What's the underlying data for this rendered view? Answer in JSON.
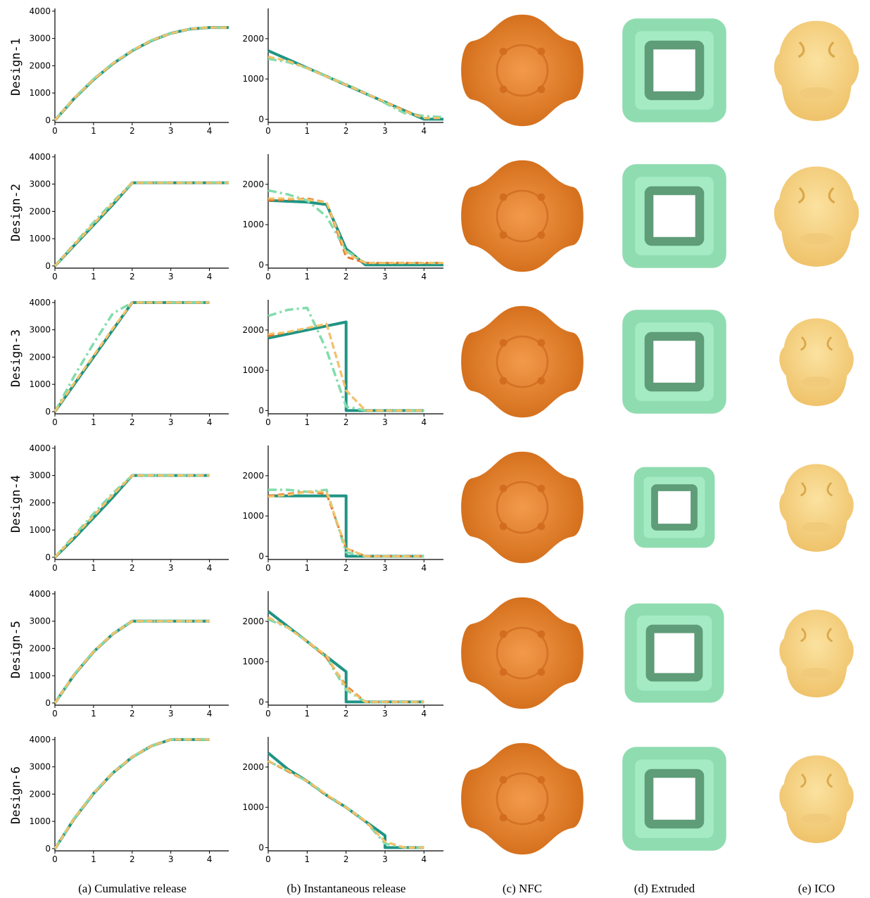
{
  "chart_data": [
    {
      "type": "line",
      "x": [
        0,
        0.5,
        1,
        1.5,
        2,
        2.5,
        3,
        3.5,
        4,
        4.5
      ],
      "xlim": [
        0,
        4.5
      ],
      "xticks": [
        0,
        1,
        2,
        3,
        4
      ],
      "ylim": [
        -80,
        4100
      ],
      "yticks": [
        0,
        1000,
        2000,
        3000,
        4000
      ],
      "series": [
        {
          "color": "#1f9484",
          "dash": "solid",
          "values": [
            0,
            797,
            1488,
            2072,
            2550,
            2922,
            3188,
            3347,
            3400,
            3400
          ]
        },
        {
          "color": "#82dcac",
          "dash": "dashdot",
          "values": [
            0,
            820,
            1510,
            2090,
            2560,
            2930,
            3190,
            3350,
            3400,
            3400
          ]
        },
        {
          "color": "#e8782a",
          "dash": "dashed",
          "values": [
            0,
            800,
            1495,
            2080,
            2555,
            2925,
            3190,
            3348,
            3400,
            3400
          ]
        },
        {
          "color": "#f2c46a",
          "dash": "dashed",
          "values": [
            0,
            805,
            1495,
            2080,
            2555,
            2925,
            3190,
            3348,
            3400,
            3400
          ]
        }
      ]
    },
    {
      "type": "line",
      "x": [
        0,
        0.5,
        1,
        1.5,
        2,
        2.5,
        3,
        3.5,
        4,
        4.5
      ],
      "xlim": [
        0,
        4.5
      ],
      "xticks": [
        0,
        1,
        2,
        3,
        4
      ],
      "ylim": [
        -80,
        2750
      ],
      "yticks": [
        0,
        1000,
        2000
      ],
      "series": [
        {
          "color": "#1f9484",
          "dash": "solid",
          "values": [
            1700,
            1488,
            1275,
            1063,
            850,
            638,
            425,
            213,
            0,
            0
          ]
        },
        {
          "color": "#82dcac",
          "dash": "dashdot",
          "values": [
            1500,
            1420,
            1270,
            1060,
            870,
            650,
            400,
            150,
            80,
            50
          ]
        },
        {
          "color": "#e8782a",
          "dash": "dashed",
          "values": [
            1550,
            1450,
            1270,
            1060,
            850,
            640,
            430,
            220,
            30,
            30
          ]
        },
        {
          "color": "#f2c46a",
          "dash": "dashed",
          "values": [
            1550,
            1450,
            1270,
            1060,
            850,
            640,
            430,
            200,
            30,
            30
          ]
        }
      ]
    },
    {
      "type": "line",
      "x": [
        0,
        0.5,
        1,
        1.5,
        2,
        2.5,
        3,
        3.5,
        4,
        4.5
      ],
      "xlim": [
        0,
        4.5
      ],
      "xticks": [
        0,
        1,
        2,
        3,
        4
      ],
      "ylim": [
        -80,
        4100
      ],
      "yticks": [
        0,
        1000,
        2000,
        3000,
        4000
      ],
      "series": [
        {
          "color": "#1f9484",
          "dash": "solid",
          "values": [
            0,
            750,
            1500,
            2250,
            3050,
            3050,
            3050,
            3050,
            3050,
            3050
          ]
        },
        {
          "color": "#82dcac",
          "dash": "dashdot",
          "values": [
            0,
            800,
            1600,
            2350,
            3050,
            3050,
            3050,
            3050,
            3050,
            3050
          ]
        },
        {
          "color": "#e8782a",
          "dash": "dashed",
          "values": [
            0,
            780,
            1540,
            2300,
            3050,
            3050,
            3050,
            3050,
            3050,
            3050
          ]
        },
        {
          "color": "#f2c46a",
          "dash": "dashed",
          "values": [
            0,
            770,
            1530,
            2290,
            3050,
            3050,
            3050,
            3050,
            3050,
            3050
          ]
        }
      ]
    },
    {
      "type": "line",
      "x": [
        0,
        0.5,
        1,
        1.5,
        2,
        2.5,
        3,
        3.5,
        4,
        4.5
      ],
      "xlim": [
        0,
        4.5
      ],
      "xticks": [
        0,
        1,
        2,
        3,
        4
      ],
      "ylim": [
        -80,
        2750
      ],
      "yticks": [
        0,
        1000,
        2000
      ],
      "series": [
        {
          "color": "#1f9484",
          "dash": "solid",
          "values": [
            1600,
            1580,
            1560,
            1500,
            400,
            0,
            0,
            0,
            0,
            0
          ]
        },
        {
          "color": "#82dcac",
          "dash": "dashdot",
          "values": [
            1850,
            1750,
            1600,
            1200,
            350,
            50,
            50,
            50,
            50,
            50
          ]
        },
        {
          "color": "#e8782a",
          "dash": "dashed",
          "values": [
            1600,
            1620,
            1650,
            1550,
            200,
            50,
            50,
            50,
            50,
            50
          ]
        },
        {
          "color": "#f2c46a",
          "dash": "dashed",
          "values": [
            1650,
            1650,
            1620,
            1550,
            300,
            50,
            50,
            50,
            50,
            50
          ]
        }
      ]
    },
    {
      "type": "line",
      "x": [
        0,
        0.5,
        1,
        1.5,
        2,
        2.5,
        3,
        3.5,
        4
      ],
      "xlim": [
        0,
        4.5
      ],
      "xticks": [
        0,
        1,
        2,
        3,
        4
      ],
      "ylim": [
        -80,
        4100
      ],
      "yticks": [
        0,
        1000,
        2000,
        3000,
        4000
      ],
      "series": [
        {
          "color": "#1f9484",
          "dash": "solid",
          "values": [
            0,
            1000,
            2000,
            3000,
            4000,
            4000,
            4000,
            4000,
            4000
          ]
        },
        {
          "color": "#82dcac",
          "dash": "dashdot",
          "values": [
            0,
            1300,
            2500,
            3600,
            4000,
            4000,
            4000,
            4000,
            4000
          ]
        },
        {
          "color": "#e8782a",
          "dash": "dashed",
          "values": [
            0,
            1050,
            2050,
            3050,
            4000,
            4000,
            4000,
            4000,
            4000
          ]
        },
        {
          "color": "#f2c46a",
          "dash": "dashed",
          "values": [
            0,
            1050,
            2050,
            3050,
            4000,
            4000,
            4000,
            4000,
            4000
          ]
        }
      ]
    },
    {
      "type": "line",
      "x": [
        0,
        0.5,
        1,
        1.5,
        2,
        2,
        2.5,
        3,
        3.5,
        4
      ],
      "xlim": [
        0,
        4.5
      ],
      "xticks": [
        0,
        1,
        2,
        3,
        4
      ],
      "ylim": [
        -80,
        2750
      ],
      "yticks": [
        0,
        1000,
        2000
      ],
      "series": [
        {
          "color": "#1f9484",
          "dash": "solid",
          "values": [
            1800,
            1900,
            2000,
            2100,
            2200,
            0,
            0,
            0,
            0,
            0
          ]
        },
        {
          "color": "#82dcac",
          "dash": "dashdot",
          "values": [
            2350,
            2500,
            2550,
            1500,
            100,
            100,
            0,
            0,
            0,
            0
          ]
        },
        {
          "color": "#e8782a",
          "dash": "dashed",
          "values": [
            1850,
            1950,
            2050,
            2150,
            500,
            500,
            0,
            0,
            0,
            0
          ]
        },
        {
          "color": "#f2c46a",
          "dash": "dashed",
          "values": [
            1900,
            1950,
            2050,
            2150,
            500,
            500,
            0,
            0,
            0,
            0
          ]
        }
      ]
    },
    {
      "type": "line",
      "x": [
        0,
        0.5,
        1,
        1.5,
        2,
        2.5,
        3,
        3.5,
        4
      ],
      "xlim": [
        0,
        4.5
      ],
      "xticks": [
        0,
        1,
        2,
        3,
        4
      ],
      "ylim": [
        -80,
        4100
      ],
      "yticks": [
        0,
        1000,
        2000,
        3000,
        4000
      ],
      "series": [
        {
          "color": "#1f9484",
          "dash": "solid",
          "values": [
            0,
            700,
            1450,
            2200,
            3000,
            3000,
            3000,
            3000,
            3000
          ]
        },
        {
          "color": "#82dcac",
          "dash": "dashdot",
          "values": [
            0,
            800,
            1600,
            2350,
            3000,
            3000,
            3000,
            3000,
            3000
          ]
        },
        {
          "color": "#e8782a",
          "dash": "dashed",
          "values": [
            0,
            760,
            1520,
            2300,
            3000,
            3000,
            3000,
            3000,
            3000
          ]
        },
        {
          "color": "#f2c46a",
          "dash": "dashed",
          "values": [
            0,
            750,
            1510,
            2290,
            3000,
            3000,
            3000,
            3000,
            3000
          ]
        }
      ]
    },
    {
      "type": "line",
      "x": [
        0,
        0.5,
        1,
        1.5,
        2,
        2,
        2.5,
        3,
        3.5,
        4
      ],
      "xlim": [
        0,
        4.5
      ],
      "xticks": [
        0,
        1,
        2,
        3,
        4
      ],
      "ylim": [
        -80,
        2750
      ],
      "yticks": [
        0,
        1000,
        2000
      ],
      "series": [
        {
          "color": "#1f9484",
          "dash": "solid",
          "values": [
            1500,
            1500,
            1500,
            1500,
            1500,
            0,
            0,
            0,
            0,
            0
          ]
        },
        {
          "color": "#82dcac",
          "dash": "dashdot",
          "values": [
            1650,
            1650,
            1600,
            1650,
            100,
            100,
            0,
            0,
            0,
            0
          ]
        },
        {
          "color": "#e8782a",
          "dash": "dashed",
          "values": [
            1500,
            1550,
            1600,
            1550,
            200,
            200,
            0,
            0,
            0,
            0
          ]
        },
        {
          "color": "#f2c46a",
          "dash": "dashed",
          "values": [
            1480,
            1520,
            1600,
            1600,
            200,
            200,
            0,
            0,
            0,
            0
          ]
        }
      ]
    },
    {
      "type": "line",
      "x": [
        0,
        0.5,
        1,
        1.5,
        2,
        2.5,
        3,
        3.5,
        4
      ],
      "xlim": [
        0,
        4.5
      ],
      "xticks": [
        0,
        1,
        2,
        3,
        4
      ],
      "ylim": [
        -80,
        4100
      ],
      "yticks": [
        0,
        1000,
        2000,
        3000,
        4000
      ],
      "series": [
        {
          "color": "#1f9484",
          "dash": "solid",
          "values": [
            0,
            1031,
            1875,
            2531,
            3000,
            3000,
            3000,
            3000,
            3000
          ]
        },
        {
          "color": "#82dcac",
          "dash": "dashdot",
          "values": [
            0,
            1050,
            1890,
            2540,
            3000,
            3000,
            3000,
            3000,
            3000
          ]
        },
        {
          "color": "#e8782a",
          "dash": "dashed",
          "values": [
            0,
            1040,
            1880,
            2535,
            3000,
            3000,
            3000,
            3000,
            3000
          ]
        },
        {
          "color": "#f2c46a",
          "dash": "dashed",
          "values": [
            0,
            1040,
            1880,
            2535,
            3000,
            3000,
            3000,
            3000,
            3000
          ]
        }
      ]
    },
    {
      "type": "line",
      "x": [
        0,
        0.5,
        1,
        1.5,
        2,
        2,
        2.5,
        3,
        3.5,
        4
      ],
      "xlim": [
        0,
        4.5
      ],
      "xticks": [
        0,
        1,
        2,
        3,
        4
      ],
      "ylim": [
        -80,
        2750
      ],
      "yticks": [
        0,
        1000,
        2000
      ],
      "series": [
        {
          "color": "#1f9484",
          "dash": "solid",
          "values": [
            2250,
            1875,
            1500,
            1125,
            750,
            0,
            0,
            0,
            0,
            0
          ]
        },
        {
          "color": "#82dcac",
          "dash": "dashdot",
          "values": [
            2050,
            1850,
            1500,
            1100,
            300,
            300,
            0,
            0,
            0,
            0
          ]
        },
        {
          "color": "#e8782a",
          "dash": "dashed",
          "values": [
            2100,
            1850,
            1500,
            1100,
            400,
            400,
            0,
            0,
            0,
            0
          ]
        },
        {
          "color": "#f2c46a",
          "dash": "dashed",
          "values": [
            2100,
            1850,
            1500,
            1150,
            350,
            350,
            0,
            0,
            0,
            0
          ]
        }
      ]
    },
    {
      "type": "line",
      "x": [
        0,
        0.5,
        1,
        1.5,
        2,
        2.5,
        3,
        3.5,
        4
      ],
      "xlim": [
        0,
        4.5
      ],
      "xticks": [
        0,
        1,
        2,
        3,
        4
      ],
      "ylim": [
        -80,
        4100
      ],
      "yticks": [
        0,
        1000,
        2000,
        3000,
        4000
      ],
      "series": [
        {
          "color": "#1f9484",
          "dash": "solid",
          "values": [
            0,
            1097,
            2022,
            2777,
            3358,
            3768,
            4000,
            4000,
            4000
          ]
        },
        {
          "color": "#82dcac",
          "dash": "dashdot",
          "values": [
            0,
            1110,
            2040,
            2790,
            3365,
            3770,
            4000,
            4000,
            4000
          ]
        },
        {
          "color": "#e8782a",
          "dash": "dashed",
          "values": [
            0,
            1100,
            2030,
            2780,
            3360,
            3770,
            4000,
            4000,
            4000
          ]
        },
        {
          "color": "#f2c46a",
          "dash": "dashed",
          "values": [
            0,
            1100,
            2030,
            2780,
            3360,
            3770,
            4000,
            4000,
            4000
          ]
        }
      ]
    },
    {
      "type": "line",
      "x": [
        0,
        0.5,
        1,
        1.5,
        2,
        2.5,
        3,
        3,
        3.5,
        4
      ],
      "xlim": [
        0,
        4.5
      ],
      "xticks": [
        0,
        1,
        2,
        3,
        4
      ],
      "ylim": [
        -80,
        2750
      ],
      "yticks": [
        0,
        1000,
        2000
      ],
      "series": [
        {
          "color": "#1f9484",
          "dash": "solid",
          "values": [
            2350,
            1950,
            1650,
            1300,
            1000,
            650,
            300,
            0,
            0,
            0
          ]
        },
        {
          "color": "#82dcac",
          "dash": "dashdot",
          "values": [
            2150,
            1900,
            1650,
            1300,
            1000,
            650,
            100,
            100,
            0,
            0
          ]
        },
        {
          "color": "#e8782a",
          "dash": "dashed",
          "values": [
            2150,
            1900,
            1650,
            1300,
            1000,
            650,
            150,
            150,
            0,
            0
          ]
        },
        {
          "color": "#f2c46a",
          "dash": "dashed",
          "values": [
            2150,
            1920,
            1650,
            1320,
            1000,
            660,
            150,
            150,
            0,
            0
          ]
        }
      ]
    }
  ],
  "row_labels": [
    "Design-1",
    "Design-2",
    "Design-3",
    "Design-4",
    "Design-5",
    "Design-6"
  ],
  "captions": [
    "(a) Cumulative release",
    "(b) Instantaneous release",
    "(c) NFC",
    "(d) Extruded",
    "(e) ICO"
  ]
}
